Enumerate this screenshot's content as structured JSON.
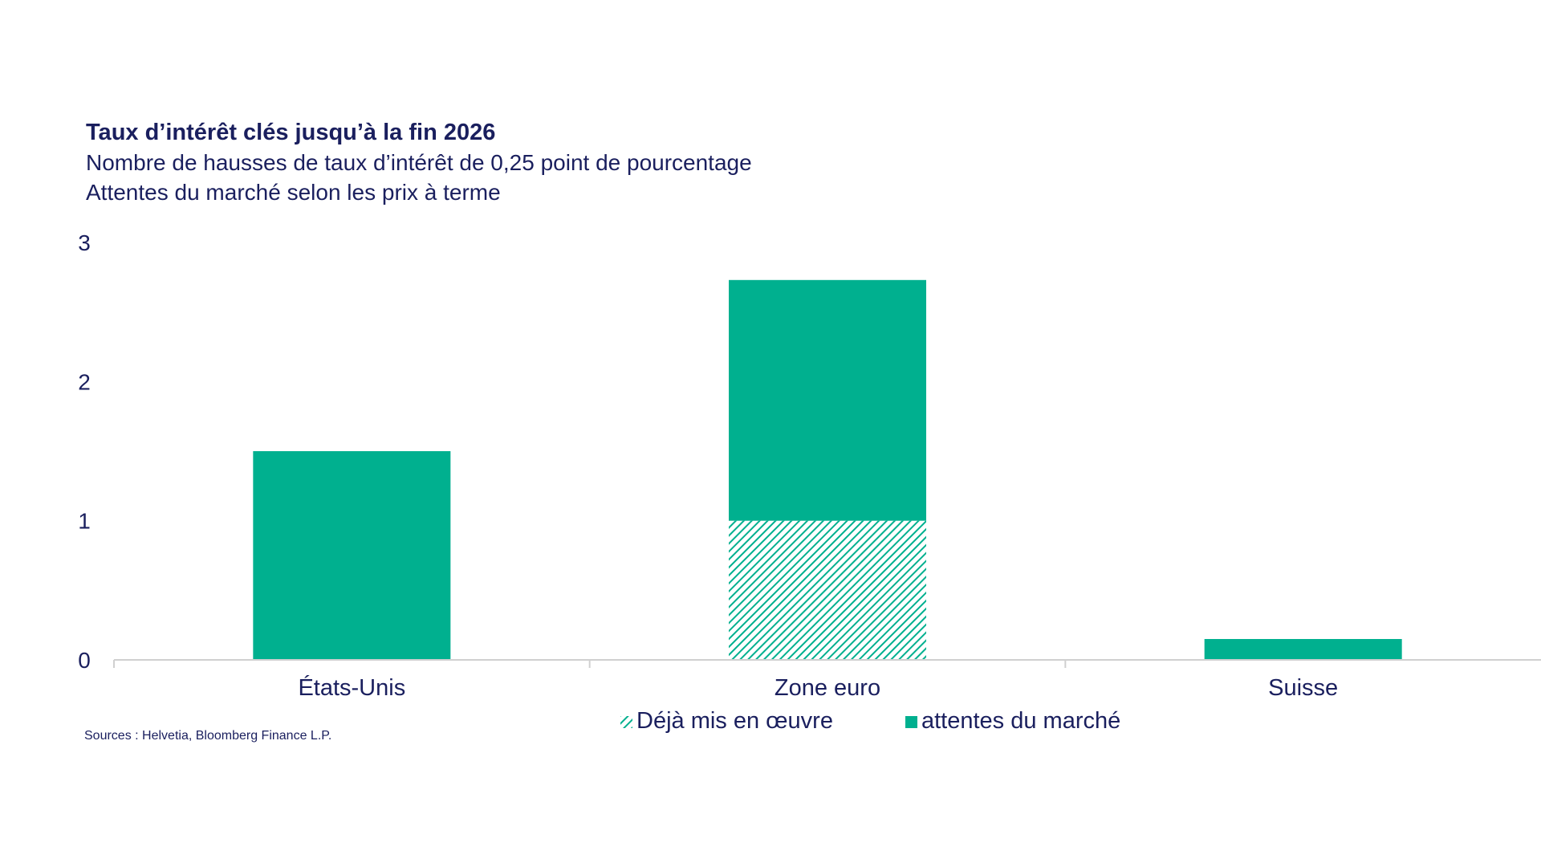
{
  "header": {
    "title": "Taux d’intérêt clés jusqu’à la fin 2026",
    "subtitle1": "Nombre de hausses de taux d’intérêt de 0,25 point de pourcentage",
    "subtitle2": "Attentes du marché selon les prix à terme"
  },
  "source": "Sources : Helvetia, Bloomberg Finance L.P.",
  "colors": {
    "accent": "#00b08f",
    "text": "#1a1f5e",
    "axis": "#d0d0d0"
  },
  "chart_data": {
    "type": "bar",
    "stacked": true,
    "categories": [
      "États-Unis",
      "Zone euro",
      "Suisse"
    ],
    "series": [
      {
        "name": "Déjà mis en œuvre",
        "values": [
          0,
          1,
          0
        ],
        "pattern": "hatched"
      },
      {
        "name": "attentes du marché",
        "values": [
          1.5,
          1.73,
          0.15
        ],
        "pattern": "solid"
      }
    ],
    "y_ticks": [
      "0",
      "1",
      "2",
      "3"
    ],
    "ylim": [
      0,
      3
    ],
    "grid": false,
    "legend_position": "bottom-center"
  }
}
